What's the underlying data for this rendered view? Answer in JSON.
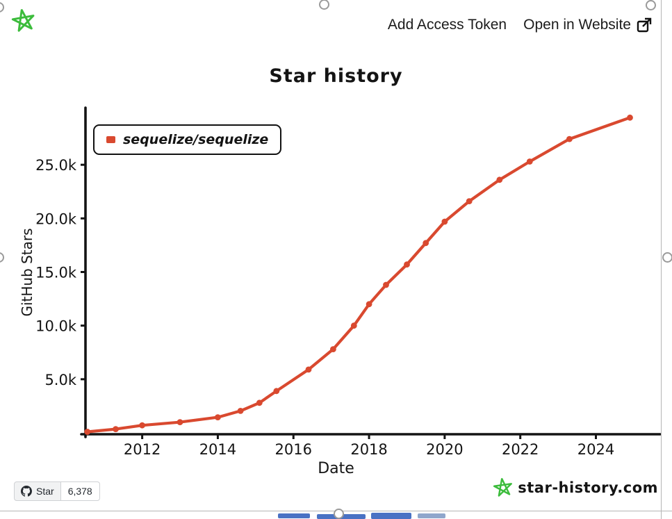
{
  "app": {
    "header": {
      "add_access_token": "Add Access Token",
      "open_in_website": "Open in Website"
    }
  },
  "chart_data": {
    "type": "line",
    "title": "Star history",
    "xlabel": "Date",
    "ylabel": "GitHub Stars",
    "legend_position": "top-left",
    "grid": false,
    "xlim": [
      2010.5,
      2025.7
    ],
    "ylim": [
      0,
      30000
    ],
    "x_ticks": [
      2012,
      2014,
      2016,
      2018,
      2020,
      2022,
      2024
    ],
    "y_ticks": [
      5000,
      10000,
      15000,
      20000,
      25000
    ],
    "y_tick_labels": [
      "5.0k",
      "10.0k",
      "15.0k",
      "20.0k",
      "25.0k"
    ],
    "series": [
      {
        "name": "sequelize/sequelize",
        "color": "#d9492f",
        "points": [
          [
            2010.55,
            100
          ],
          [
            2011.3,
            350
          ],
          [
            2012.0,
            700
          ],
          [
            2013.0,
            1000
          ],
          [
            2014.0,
            1450
          ],
          [
            2014.6,
            2050
          ],
          [
            2015.1,
            2800
          ],
          [
            2015.55,
            3900
          ],
          [
            2016.4,
            5900
          ],
          [
            2017.05,
            7800
          ],
          [
            2017.6,
            10000
          ],
          [
            2018.0,
            12000
          ],
          [
            2018.45,
            13800
          ],
          [
            2019.0,
            15700
          ],
          [
            2019.5,
            17700
          ],
          [
            2020.0,
            19700
          ],
          [
            2020.65,
            21600
          ],
          [
            2021.45,
            23600
          ],
          [
            2022.25,
            25300
          ],
          [
            2023.3,
            27400
          ],
          [
            2024.9,
            29400
          ]
        ]
      }
    ]
  },
  "footer": {
    "github_badge": {
      "star_label": "Star",
      "star_count": "6,378"
    },
    "brand_text": "star-history.com"
  },
  "colors": {
    "series_red": "#d9492f",
    "brand_green": "#3cbc3c",
    "axis_black": "#141414"
  },
  "icons": {
    "app-logo-star-icon": "green doodle pentagram star",
    "external-link-icon": "square with outgoing arrow",
    "github-icon": "github octocat mark",
    "brand-star-icon": "green doodle pentagram star"
  }
}
